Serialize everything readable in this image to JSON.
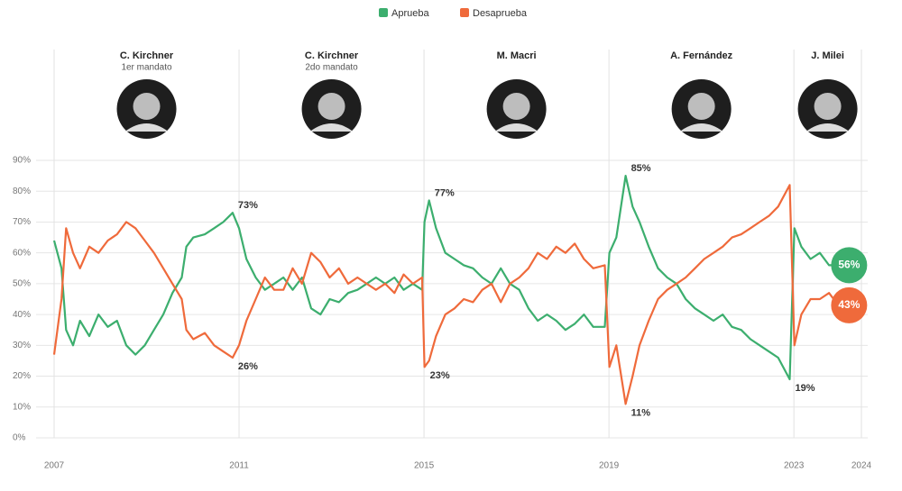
{
  "chart_data": {
    "type": "line",
    "ylim": [
      0,
      90
    ],
    "yticks": [
      {
        "value": 0,
        "label": "0%"
      },
      {
        "value": 10,
        "label": "10%"
      },
      {
        "value": 20,
        "label": "20%"
      },
      {
        "value": 30,
        "label": "30%"
      },
      {
        "value": 40,
        "label": "40%"
      },
      {
        "value": 50,
        "label": "50%"
      },
      {
        "value": 60,
        "label": "60%"
      },
      {
        "value": 70,
        "label": "70%"
      },
      {
        "value": 80,
        "label": "80%"
      },
      {
        "value": 90,
        "label": "90%"
      }
    ],
    "xlim": [
      2007.94,
      2025.4
    ],
    "xticks": [
      {
        "value": 2007.94,
        "label": "2007"
      },
      {
        "value": 2011.94,
        "label": "2011"
      },
      {
        "value": 2015.94,
        "label": "2015"
      },
      {
        "value": 2019.94,
        "label": "2019"
      },
      {
        "value": 2023.94,
        "label": "2023"
      },
      {
        "value": 2025.4,
        "label": "2024"
      }
    ],
    "grid": true,
    "legend": "top",
    "periods": [
      {
        "name": "C. Kirchner",
        "subtitle": "1er mandato",
        "start": 2007.94
      },
      {
        "name": "C. Kirchner",
        "subtitle": "2do mandato",
        "start": 2011.94
      },
      {
        "name": "M. Macri",
        "start": 2015.94
      },
      {
        "name": "A. Fernández",
        "start": 2019.94
      },
      {
        "name": "J. Milei",
        "start": 2023.94
      }
    ],
    "x": [
      2007.94,
      2008.1,
      2008.2,
      2008.35,
      2008.5,
      2008.7,
      2008.9,
      2009.1,
      2009.3,
      2009.5,
      2009.7,
      2009.9,
      2010.1,
      2010.3,
      2010.5,
      2010.7,
      2010.8,
      2010.95,
      2011.2,
      2011.4,
      2011.6,
      2011.8,
      2011.94,
      2012.1,
      2012.3,
      2012.5,
      2012.7,
      2012.9,
      2013.1,
      2013.3,
      2013.5,
      2013.7,
      2013.9,
      2014.1,
      2014.3,
      2014.5,
      2014.7,
      2014.9,
      2015.1,
      2015.3,
      2015.5,
      2015.7,
      2015.9,
      2015.95,
      2016.05,
      2016.2,
      2016.4,
      2016.6,
      2016.8,
      2017.0,
      2017.2,
      2017.4,
      2017.6,
      2017.8,
      2018.0,
      2018.2,
      2018.4,
      2018.6,
      2018.8,
      2019.0,
      2019.2,
      2019.4,
      2019.6,
      2019.85,
      2019.95,
      2020.1,
      2020.3,
      2020.45,
      2020.6,
      2020.8,
      2021.0,
      2021.2,
      2021.4,
      2021.6,
      2021.8,
      2022.0,
      2022.2,
      2022.4,
      2022.6,
      2022.8,
      2023.0,
      2023.2,
      2023.4,
      2023.6,
      2023.85,
      2023.95,
      2024.1,
      2024.3,
      2024.5,
      2024.7,
      2024.9
    ],
    "series": [
      {
        "name": "Aprueba",
        "color": "#3cae6e",
        "values": [
          64,
          55,
          35,
          30,
          38,
          33,
          40,
          36,
          38,
          30,
          27,
          30,
          35,
          40,
          47,
          52,
          62,
          65,
          66,
          68,
          70,
          73,
          68,
          58,
          52,
          48,
          50,
          52,
          48,
          52,
          42,
          40,
          45,
          44,
          47,
          48,
          50,
          52,
          50,
          52,
          48,
          50,
          48,
          70,
          77,
          68,
          60,
          58,
          56,
          55,
          52,
          50,
          55,
          50,
          48,
          42,
          38,
          40,
          38,
          35,
          37,
          40,
          36,
          36,
          60,
          65,
          85,
          75,
          70,
          62,
          55,
          52,
          50,
          45,
          42,
          40,
          38,
          40,
          36,
          35,
          32,
          30,
          28,
          26,
          19,
          68,
          62,
          58,
          60,
          56,
          56
        ],
        "annotations": [
          {
            "x": 2011.8,
            "y": 73,
            "label": "73%"
          },
          {
            "x": 2016.05,
            "y": 77,
            "label": "77%"
          },
          {
            "x": 2020.3,
            "y": 85,
            "label": "85%"
          },
          {
            "x": 2023.85,
            "y": 19,
            "label": "19%"
          }
        ],
        "end_label": "56%"
      },
      {
        "name": "Desaprueba",
        "color": "#ef6a3b",
        "values": [
          27,
          45,
          68,
          60,
          55,
          62,
          60,
          64,
          66,
          70,
          68,
          64,
          60,
          55,
          50,
          45,
          35,
          32,
          34,
          30,
          28,
          26,
          30,
          38,
          45,
          52,
          48,
          48,
          55,
          50,
          60,
          57,
          52,
          55,
          50,
          52,
          50,
          48,
          50,
          47,
          53,
          50,
          52,
          23,
          25,
          33,
          40,
          42,
          45,
          44,
          48,
          50,
          44,
          50,
          52,
          55,
          60,
          58,
          62,
          60,
          63,
          58,
          55,
          56,
          23,
          30,
          11,
          20,
          30,
          38,
          45,
          48,
          50,
          52,
          55,
          58,
          60,
          62,
          65,
          66,
          68,
          70,
          72,
          75,
          82,
          30,
          40,
          45,
          45,
          47,
          43
        ],
        "annotations": [
          {
            "x": 2011.8,
            "y": 26,
            "label": "26%"
          },
          {
            "x": 2015.95,
            "y": 23,
            "label": "23%"
          },
          {
            "x": 2020.3,
            "y": 11,
            "label": "11%"
          }
        ],
        "end_label": "43%"
      }
    ]
  }
}
